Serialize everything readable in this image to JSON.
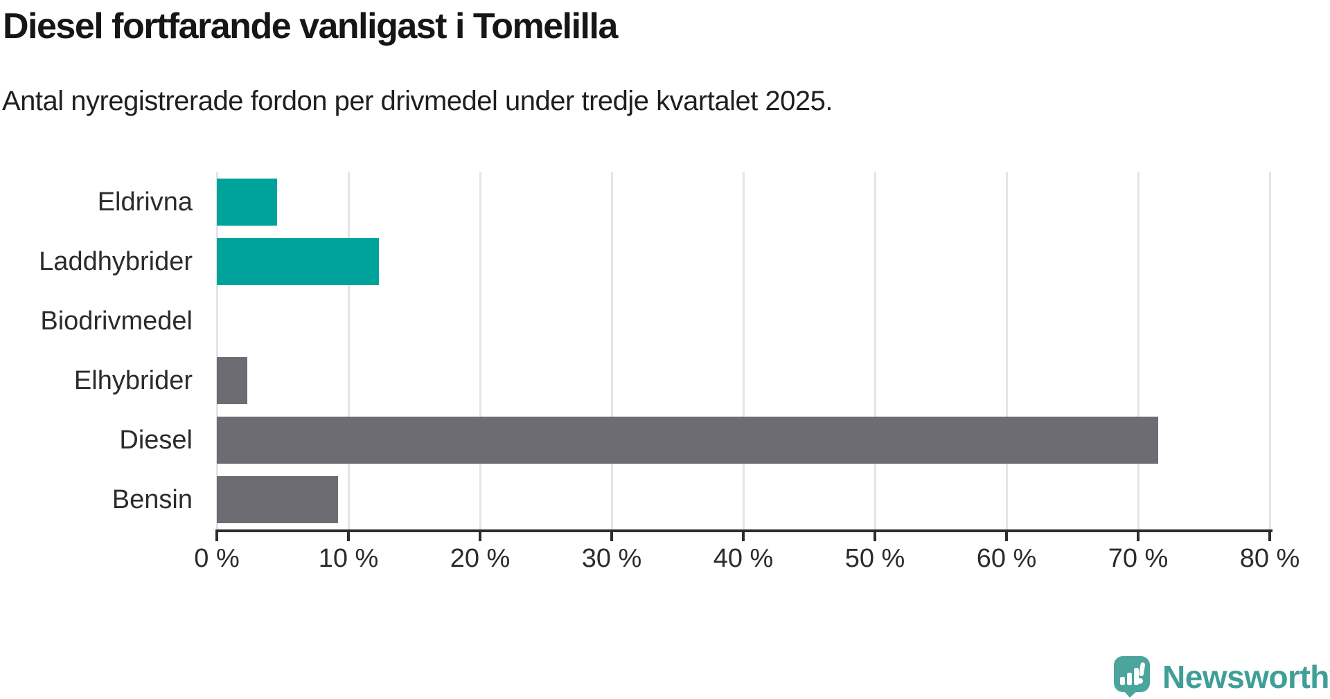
{
  "header": {
    "title": "Diesel fortfarande vanligast i Tomelilla",
    "subtitle": "Antal nyregistrerade fordon per drivmedel under tredje kvartalet 2025."
  },
  "chart_data": {
    "type": "bar",
    "orientation": "horizontal",
    "title": "Diesel fortfarande vanligast i Tomelilla",
    "subtitle": "Antal nyregistrerade fordon per drivmedel under tredje kvartalet 2025.",
    "categories": [
      "Eldrivna",
      "Laddhybrider",
      "Biodrivmedel",
      "Elhybrider",
      "Diesel",
      "Bensin"
    ],
    "values": [
      4.6,
      12.3,
      0,
      2.3,
      71.5,
      9.2
    ],
    "unit": "%",
    "xlim": [
      0,
      80
    ],
    "x_ticks": [
      0,
      10,
      20,
      30,
      40,
      50,
      60,
      70,
      80
    ],
    "x_tick_labels": [
      "0 %",
      "10 %",
      "20 %",
      "30 %",
      "40 %",
      "50 %",
      "60 %",
      "70 %",
      "80 %"
    ],
    "grid": true,
    "legend": "none",
    "bar_colors": [
      "#00a39b",
      "#00a39b",
      "#6d6c72",
      "#6d6c72",
      "#6d6c72",
      "#6d6c72"
    ],
    "colors": {
      "accent_teal": "#00a39b",
      "bar_gray": "#6d6c72",
      "axis": "#2d2d2d",
      "grid": "#e4e4e6",
      "text": "#2b2b2b"
    }
  },
  "footer": {
    "brand": "Newsworthy",
    "brand_color": "#3f9f97",
    "brand_mark_color": "#4ba59d"
  }
}
